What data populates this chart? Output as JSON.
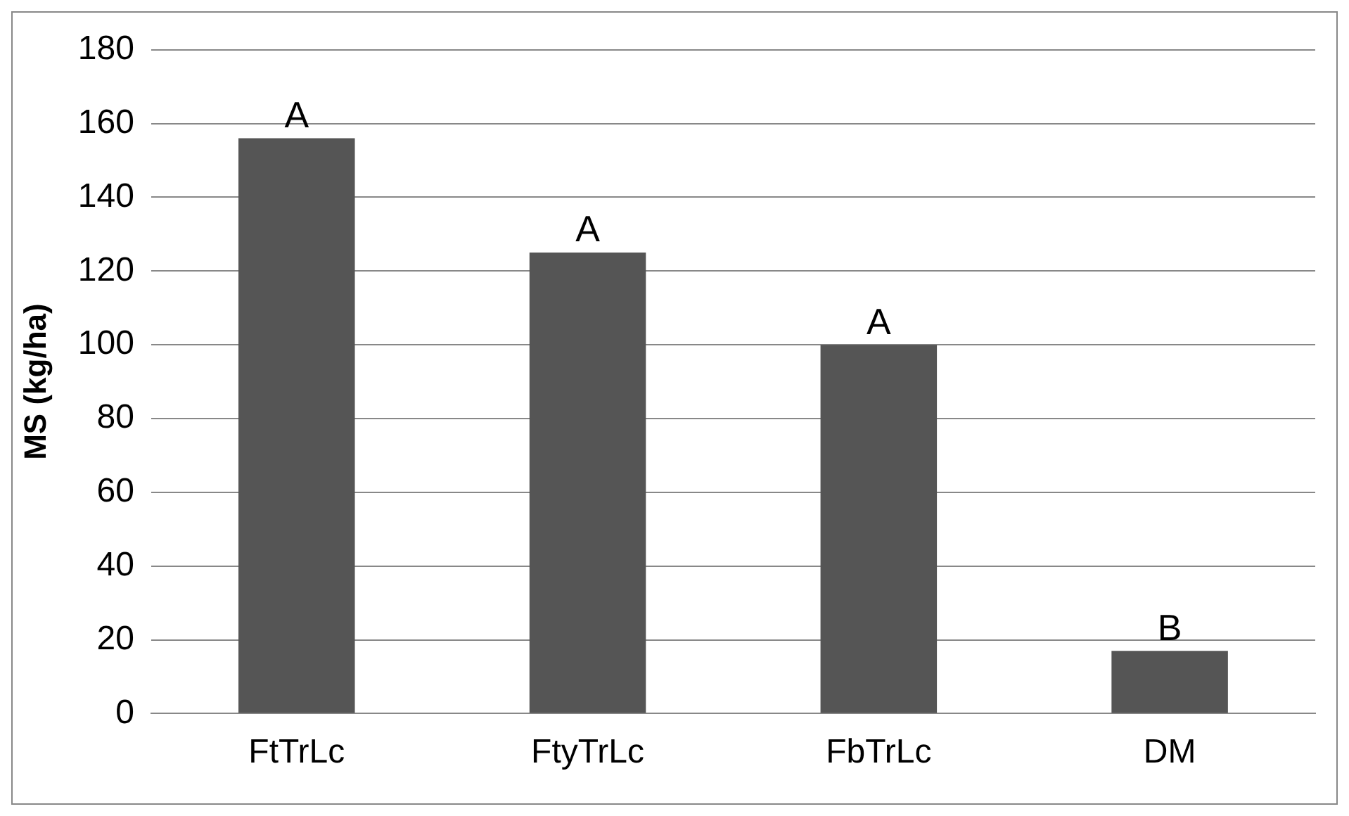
{
  "chart_data": {
    "type": "bar",
    "ylabel": "MS (kg/ha)",
    "categories": [
      "FtTrLc",
      "FtyTrLc",
      "FbTrLc",
      "DM"
    ],
    "values": [
      156,
      125,
      100,
      17
    ],
    "color": "#555555",
    "ylim": [
      0,
      180
    ],
    "yticks": [
      0,
      20,
      40,
      60,
      80,
      100,
      120,
      140,
      160,
      180
    ],
    "grid": "y",
    "annotations": [
      {
        "text": "A",
        "x": "FtTrLc",
        "y": 156
      },
      {
        "text": "A",
        "x": "FtyTrLc",
        "y": 125
      },
      {
        "text": "A",
        "x": "FbTrLc",
        "y": 100
      },
      {
        "text": "B",
        "x": "DM",
        "y": 17
      }
    ]
  }
}
